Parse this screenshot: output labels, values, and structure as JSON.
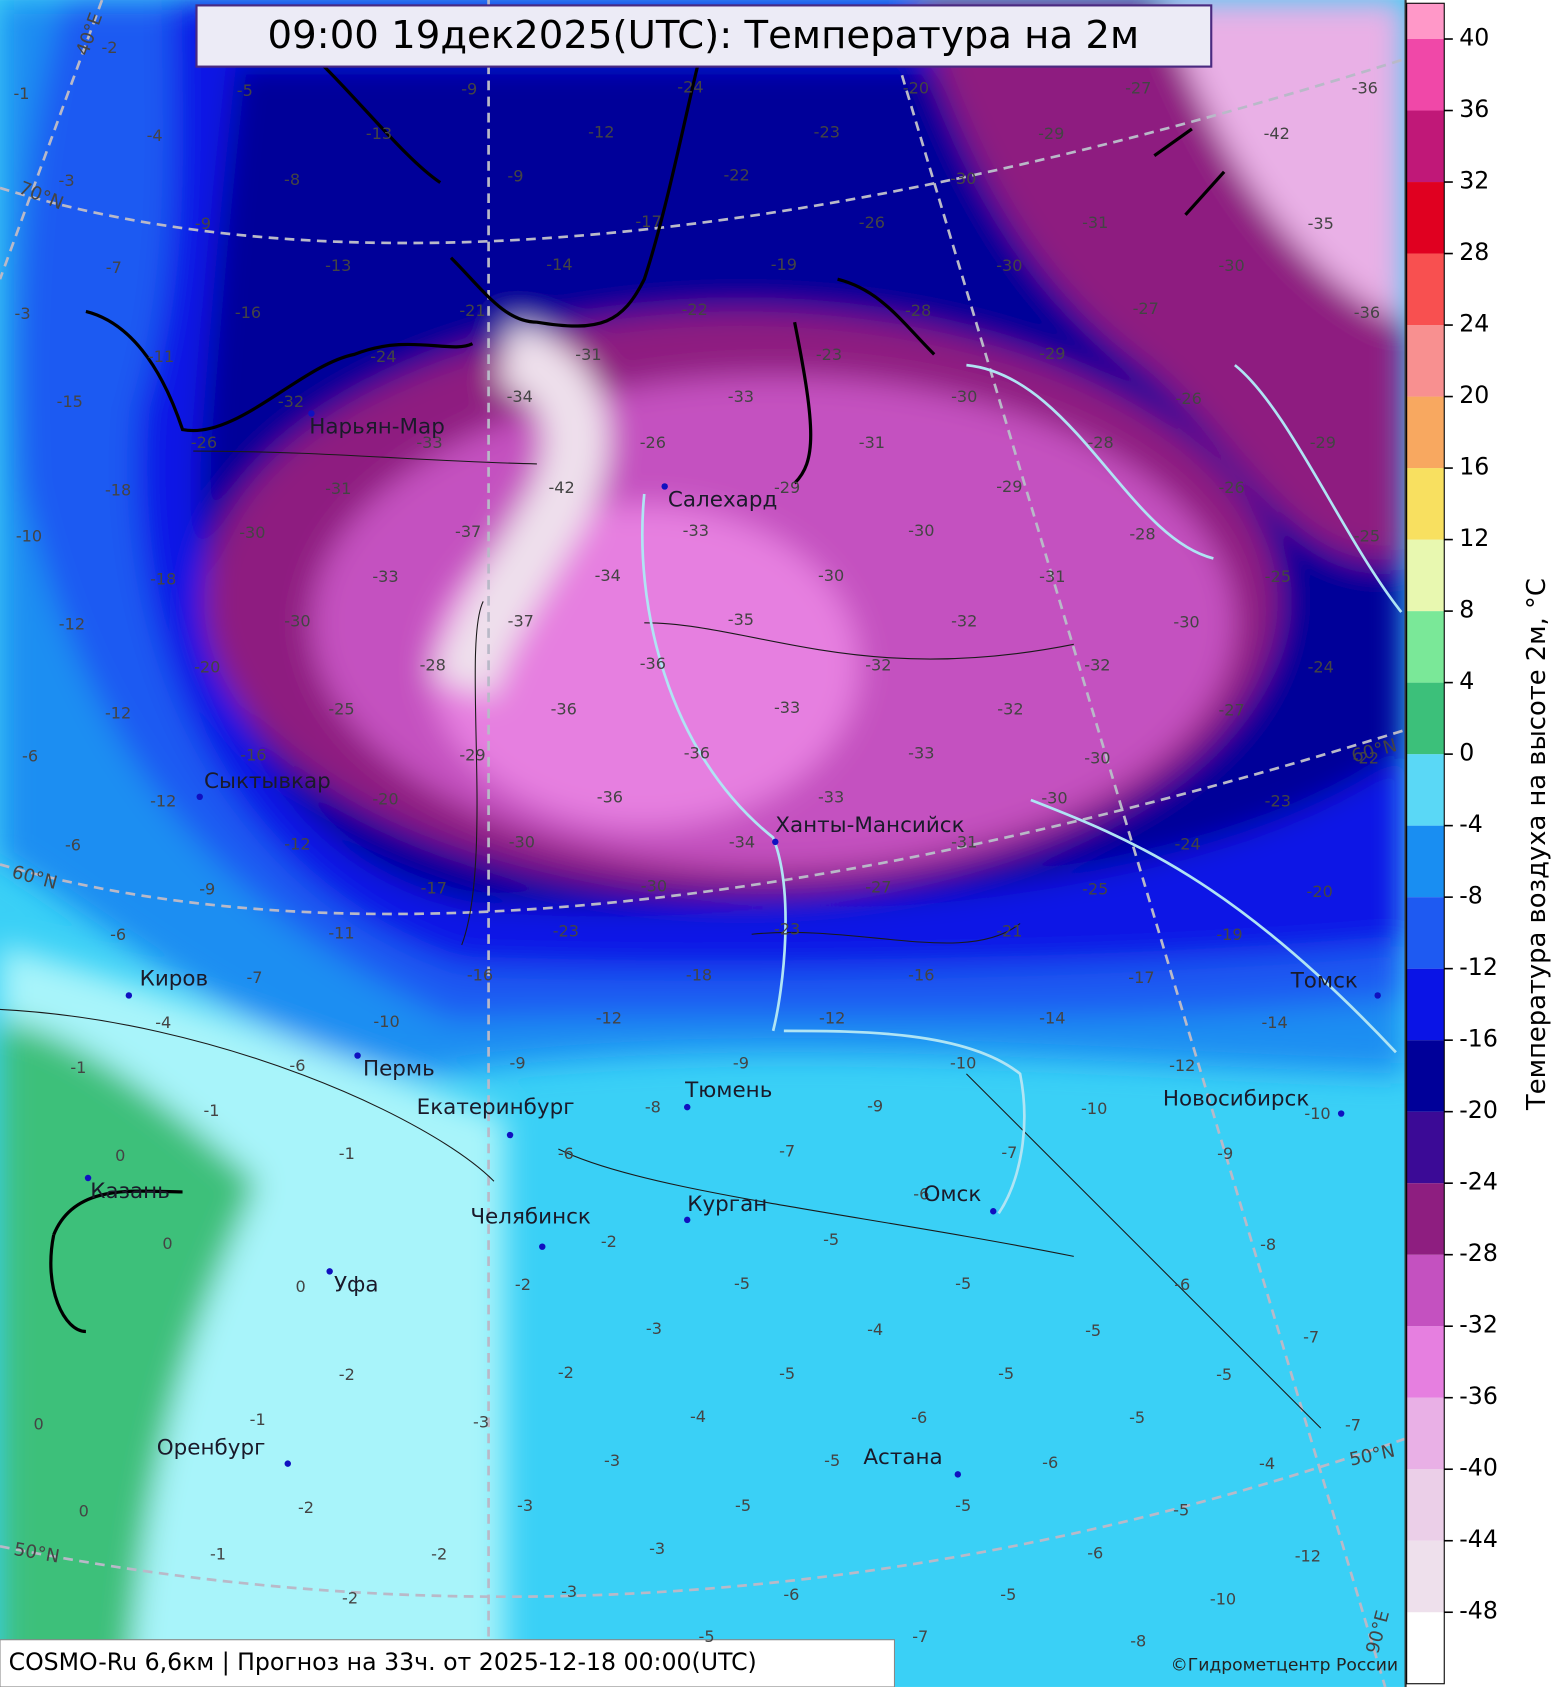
{
  "title": "09:00 19дек2025(UTC): Температура на 2м",
  "footer": "COSMO-Ru 6,6км | Прогноз на  33ч. от 2025-12-18 00:00(UTC)",
  "copyright": "©Гидрометцентр России",
  "colorbar": {
    "label": "Температура воздуха на высоте 2м, °C",
    "lim": [
      -52,
      42
    ],
    "ticks": [
      -48,
      -44,
      -40,
      -36,
      -32,
      -28,
      -24,
      -20,
      -16,
      -12,
      -8,
      -4,
      0,
      4,
      8,
      12,
      16,
      20,
      24,
      28,
      32,
      36,
      40
    ],
    "levels": [
      -52,
      -48,
      -44,
      -40,
      -36,
      -32,
      -28,
      -24,
      -20,
      -16,
      -12,
      -8,
      -4,
      0,
      4,
      8,
      12,
      16,
      20,
      24,
      28,
      32,
      36,
      40
    ],
    "colors": [
      "#ffffff",
      "#eee0ec",
      "#ebcfe8",
      "#e9b0e6",
      "#e67fe0",
      "#c451c0",
      "#8e1e80",
      "#3b0a96",
      "#000099",
      "#0a14e6",
      "#1e5af2",
      "#198ef2",
      "#5ad8f6",
      "#3cc07a",
      "#7ae898",
      "#e8f8b0",
      "#f8e060",
      "#f8a860",
      "#f89090",
      "#f85050",
      "#e00020",
      "#c01878",
      "#f048a8",
      "#ff98c8"
    ]
  },
  "cities": [
    "Нарьян-Мар",
    "Салехард",
    "Сыктывкар",
    "Ханты-Мансийск",
    "Киров",
    "Пермь",
    "Екатеринбург",
    "Тюмень",
    "Томск",
    "Новосибирск",
    "Казань",
    "Курган",
    "Омск",
    "Челябинск",
    "Уфа",
    "Оренбург",
    "Астана"
  ],
  "graticule_labels": [
    "70°N",
    "60°N",
    "50°N",
    "40°E",
    "60°N",
    "50°N",
    "90°E"
  ],
  "field_labels": [
    -24,
    -12,
    -9,
    -22,
    -19,
    -24,
    -34,
    -33,
    -33,
    -42,
    -33,
    -37,
    -31,
    -33,
    -34,
    -37,
    -36,
    -36,
    -33,
    -36,
    -36,
    -33,
    -34,
    -33,
    -32,
    -32,
    -30,
    -29,
    -30,
    -28,
    -26,
    -26,
    -25,
    -25,
    -24,
    -23,
    -24,
    -20,
    -19,
    -17,
    -25,
    -21,
    -16,
    -12,
    -18,
    -23,
    -16,
    -12,
    -9,
    -17,
    -20,
    -11,
    -12,
    -9,
    -18,
    -18,
    -10,
    -12,
    -20,
    -25,
    -16,
    -12,
    -12,
    -6,
    -6,
    -6,
    -4,
    -7,
    -10,
    -6,
    -1,
    -1,
    -1,
    0,
    0,
    0,
    -2,
    -1,
    0,
    0,
    -1,
    -2,
    -2,
    -3,
    -2,
    -3,
    -3,
    -3,
    -3,
    -4,
    -3,
    -2,
    -2,
    -2,
    -6,
    -8,
    -9,
    -7,
    -5,
    -5,
    -4,
    -5,
    -5,
    -5,
    -6,
    -6,
    -5,
    -5,
    -6,
    -5,
    -5,
    -6,
    -5,
    -4,
    -7,
    -7,
    -5,
    -10,
    -6,
    -5,
    -5,
    -7,
    -5,
    -8,
    -12,
    -8,
    -9,
    -12,
    -10,
    -7,
    -6,
    -9,
    -10,
    -14,
    -14,
    -10,
    -30,
    -32,
    -31,
    -30,
    -27,
    -30,
    -31,
    -27,
    -23,
    -30,
    -30,
    -29,
    -28,
    -30,
    -30,
    -26,
    -11,
    -15,
    -7,
    -9,
    -8,
    -4,
    -3,
    -5,
    -1,
    -2,
    -13,
    -13,
    -16,
    -3,
    -9,
    -21,
    -14,
    -17,
    -22,
    -23,
    -31,
    -30,
    -35,
    -32,
    -28,
    -29,
    -30,
    -30,
    -26,
    -29,
    -27,
    -31,
    -27,
    -30,
    -35,
    -36,
    -29,
    -36,
    -42,
    -20,
    -23,
    -28,
    -22,
    -32,
    -31,
    -26,
    -29
  ]
}
